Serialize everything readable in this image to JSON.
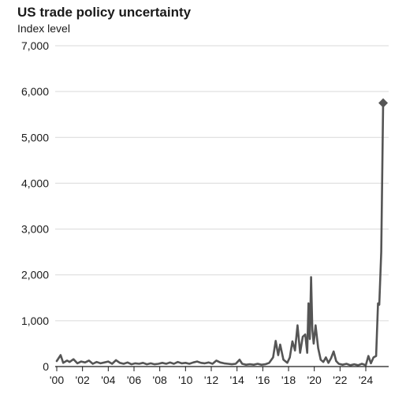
{
  "chart_data": {
    "type": "line",
    "title": "US trade policy uncertainty",
    "subtitle": "Index level",
    "xlabel": "",
    "ylabel": "Index level",
    "xlim": [
      2000,
      2025.5
    ],
    "ylim": [
      0,
      7000
    ],
    "grid": true,
    "legend": "none",
    "line_color": "#555555",
    "yticks": [
      {
        "value": 0,
        "label": "0"
      },
      {
        "value": 1000,
        "label": "1,000"
      },
      {
        "value": 2000,
        "label": "2,000"
      },
      {
        "value": 3000,
        "label": "3,000"
      },
      {
        "value": 4000,
        "label": "4,000"
      },
      {
        "value": 5000,
        "label": "5,000"
      },
      {
        "value": 6000,
        "label": "6,000"
      },
      {
        "value": 7000,
        "label": "7,000"
      }
    ],
    "xticks": [
      {
        "value": 2000,
        "label": "'00"
      },
      {
        "value": 2002,
        "label": "'02"
      },
      {
        "value": 2004,
        "label": "'04"
      },
      {
        "value": 2006,
        "label": "'06"
      },
      {
        "value": 2008,
        "label": "'08"
      },
      {
        "value": 2010,
        "label": "'10"
      },
      {
        "value": 2012,
        "label": "'12"
      },
      {
        "value": 2014,
        "label": "'14"
      },
      {
        "value": 2016,
        "label": "'16"
      },
      {
        "value": 2018,
        "label": "'18"
      },
      {
        "value": 2020,
        "label": "'20"
      },
      {
        "value": 2022,
        "label": "'22"
      },
      {
        "value": 2024,
        "label": "'24"
      }
    ],
    "series": [
      {
        "values": [
          [
            2000.0,
            120
          ],
          [
            2000.3,
            250
          ],
          [
            2000.5,
            80
          ],
          [
            2000.8,
            130
          ],
          [
            2001.0,
            100
          ],
          [
            2001.3,
            160
          ],
          [
            2001.6,
            70
          ],
          [
            2001.9,
            110
          ],
          [
            2002.2,
            90
          ],
          [
            2002.5,
            130
          ],
          [
            2002.8,
            60
          ],
          [
            2003.1,
            100
          ],
          [
            2003.4,
            70
          ],
          [
            2003.7,
            90
          ],
          [
            2004.0,
            110
          ],
          [
            2004.3,
            60
          ],
          [
            2004.6,
            140
          ],
          [
            2004.9,
            80
          ],
          [
            2005.2,
            60
          ],
          [
            2005.5,
            90
          ],
          [
            2005.8,
            50
          ],
          [
            2006.1,
            70
          ],
          [
            2006.4,
            60
          ],
          [
            2006.7,
            80
          ],
          [
            2007.0,
            50
          ],
          [
            2007.3,
            70
          ],
          [
            2007.6,
            50
          ],
          [
            2007.9,
            60
          ],
          [
            2008.2,
            80
          ],
          [
            2008.5,
            60
          ],
          [
            2008.8,
            90
          ],
          [
            2009.1,
            60
          ],
          [
            2009.4,
            100
          ],
          [
            2009.7,
            70
          ],
          [
            2010.0,
            80
          ],
          [
            2010.3,
            60
          ],
          [
            2010.6,
            90
          ],
          [
            2010.9,
            110
          ],
          [
            2011.2,
            80
          ],
          [
            2011.5,
            70
          ],
          [
            2011.8,
            90
          ],
          [
            2012.1,
            60
          ],
          [
            2012.4,
            130
          ],
          [
            2012.7,
            90
          ],
          [
            2013.0,
            70
          ],
          [
            2013.3,
            60
          ],
          [
            2013.6,
            50
          ],
          [
            2013.9,
            60
          ],
          [
            2014.2,
            150
          ],
          [
            2014.4,
            60
          ],
          [
            2014.7,
            40
          ],
          [
            2015.0,
            50
          ],
          [
            2015.3,
            40
          ],
          [
            2015.6,
            60
          ],
          [
            2015.9,
            40
          ],
          [
            2016.2,
            50
          ],
          [
            2016.5,
            80
          ],
          [
            2016.8,
            200
          ],
          [
            2017.0,
            560
          ],
          [
            2017.2,
            250
          ],
          [
            2017.35,
            480
          ],
          [
            2017.6,
            150
          ],
          [
            2017.9,
            80
          ],
          [
            2018.1,
            200
          ],
          [
            2018.3,
            550
          ],
          [
            2018.5,
            350
          ],
          [
            2018.7,
            900
          ],
          [
            2018.9,
            300
          ],
          [
            2019.1,
            650
          ],
          [
            2019.3,
            700
          ],
          [
            2019.45,
            300
          ],
          [
            2019.55,
            1380
          ],
          [
            2019.65,
            600
          ],
          [
            2019.75,
            1950
          ],
          [
            2019.85,
            800
          ],
          [
            2019.95,
            500
          ],
          [
            2020.1,
            900
          ],
          [
            2020.3,
            400
          ],
          [
            2020.5,
            150
          ],
          [
            2020.7,
            100
          ],
          [
            2020.9,
            200
          ],
          [
            2021.1,
            80
          ],
          [
            2021.3,
            180
          ],
          [
            2021.5,
            330
          ],
          [
            2021.7,
            120
          ],
          [
            2021.9,
            60
          ],
          [
            2022.2,
            40
          ],
          [
            2022.5,
            60
          ],
          [
            2022.8,
            30
          ],
          [
            2023.1,
            50
          ],
          [
            2023.4,
            30
          ],
          [
            2023.7,
            60
          ],
          [
            2024.0,
            30
          ],
          [
            2024.2,
            230
          ],
          [
            2024.4,
            70
          ],
          [
            2024.6,
            200
          ],
          [
            2024.8,
            230
          ],
          [
            2024.95,
            1380
          ],
          [
            2025.05,
            1350
          ],
          [
            2025.2,
            2500
          ],
          [
            2025.35,
            5750
          ]
        ]
      }
    ],
    "end_marker": {
      "x": 2025.35,
      "y": 5750
    }
  }
}
